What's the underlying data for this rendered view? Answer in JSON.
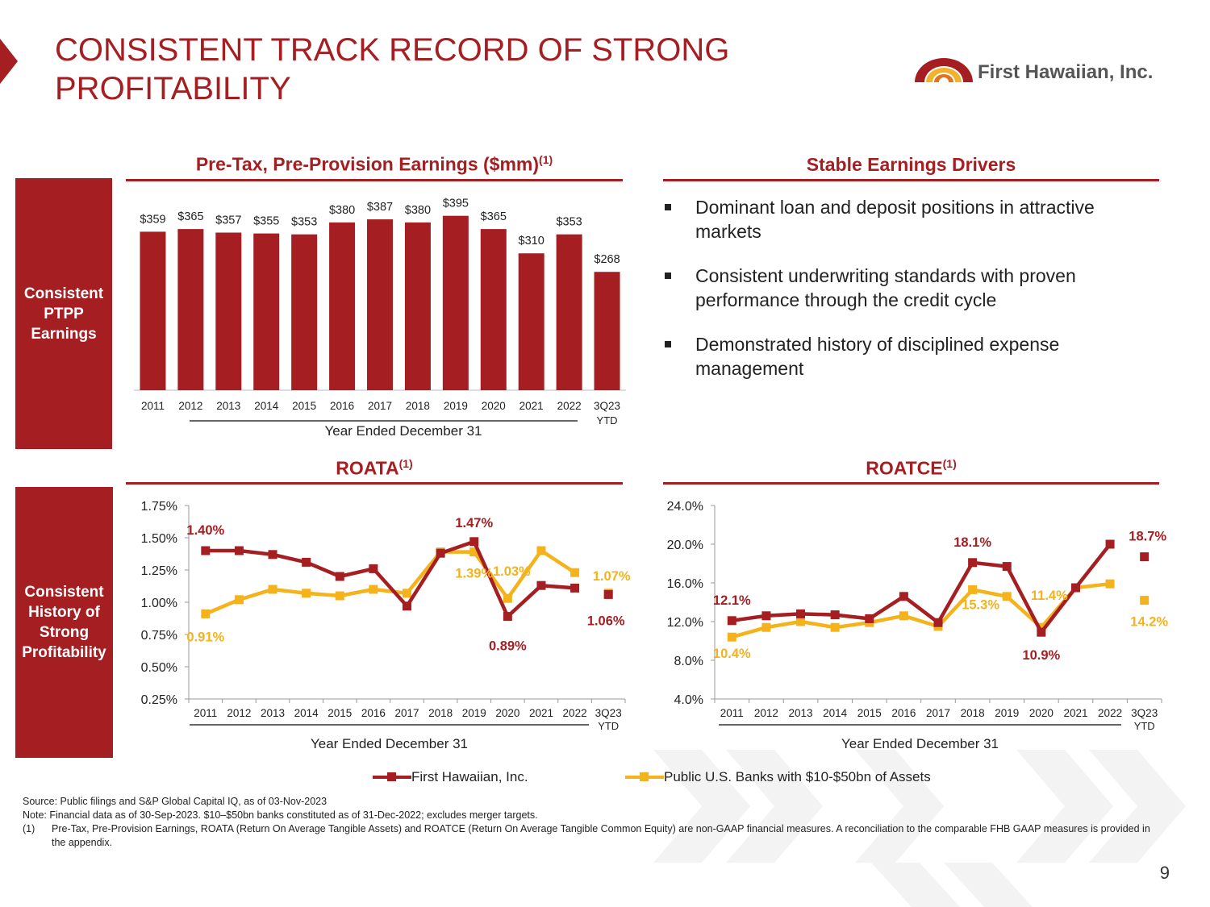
{
  "slide": {
    "title": "CONSISTENT TRACK RECORD OF STRONG PROFITABILITY",
    "logo_text": "First Hawaiian, Inc.",
    "page_number": "9"
  },
  "colors": {
    "brand_red": "#a51e22",
    "peer_gold": "#f4b21b",
    "logo_gold": "#f2b22b",
    "logo_orange": "#e2731f"
  },
  "side_labels": {
    "ptpp": "Consistent PTPP Earnings",
    "history": "Consistent History of Strong Profitability"
  },
  "sections": {
    "ptpp_title": "Pre-Tax, Pre-Provision Earnings ($mm)",
    "ptpp_note": "(1)",
    "drivers_title": "Stable Earnings Drivers",
    "roata_title": "ROATA",
    "roata_note": "(1)",
    "roatce_title": "ROATCE",
    "roatce_note": "(1)"
  },
  "drivers": [
    "Dominant loan and deposit positions in attractive markets",
    "Consistent underwriting standards with proven performance through the credit cycle",
    "Demonstrated history of disciplined expense management"
  ],
  "chart_data": [
    {
      "id": "ptpp",
      "type": "bar",
      "title": "Pre-Tax, Pre-Provision Earnings ($mm)",
      "categories": [
        "2011",
        "2012",
        "2013",
        "2014",
        "2015",
        "2016",
        "2017",
        "2018",
        "2019",
        "2020",
        "2021",
        "2022",
        "3Q23"
      ],
      "ytd_label": "YTD",
      "values": [
        359,
        365,
        357,
        355,
        353,
        380,
        387,
        380,
        395,
        365,
        310,
        353,
        268
      ],
      "value_labels": [
        "$359",
        "$365",
        "$357",
        "$355",
        "$353",
        "$380",
        "$387",
        "$380",
        "$395",
        "$365",
        "$310",
        "$353",
        "$268"
      ],
      "xlabel": "Year Ended December 31",
      "ylim": [
        0,
        420
      ]
    },
    {
      "id": "roata",
      "type": "line",
      "title": "ROATA",
      "categories": [
        "2011",
        "2012",
        "2013",
        "2014",
        "2015",
        "2016",
        "2017",
        "2018",
        "2019",
        "2020",
        "2021",
        "2022",
        "3Q23"
      ],
      "ytd_label": "YTD",
      "y_ticks": [
        "1.75%",
        "1.50%",
        "1.25%",
        "1.00%",
        "0.75%",
        "0.50%",
        "0.25%"
      ],
      "ylim": [
        0.25,
        1.75
      ],
      "xlabel": "Year Ended December 31",
      "series": [
        {
          "name": "First Hawaiian, Inc.",
          "color": "#a51e22",
          "values": [
            1.4,
            1.4,
            1.37,
            1.31,
            1.2,
            1.26,
            0.97,
            1.38,
            1.47,
            0.89,
            1.13,
            1.11,
            1.06
          ]
        },
        {
          "name": "Public U.S. Banks with $10-$50bn of Assets",
          "color": "#f4b21b",
          "values": [
            0.91,
            1.02,
            1.1,
            1.07,
            1.05,
            1.1,
            1.07,
            1.39,
            1.39,
            1.03,
            1.4,
            1.23,
            1.07
          ]
        }
      ],
      "annotations": [
        {
          "text": "1.40%",
          "series": 0,
          "point": 0,
          "dx": 0,
          "dy": -20,
          "color": "#a51e22"
        },
        {
          "text": "1.47%",
          "series": 0,
          "point": 8,
          "dx": 0,
          "dy": -18,
          "color": "#a51e22"
        },
        {
          "text": "0.89%",
          "series": 0,
          "point": 9,
          "dx": 0,
          "dy": 42,
          "color": "#a51e22"
        },
        {
          "text": "1.06%",
          "series": 0,
          "point": 12,
          "dx": -3,
          "dy": 38,
          "color": "#a51e22"
        },
        {
          "text": "0.91%",
          "series": 1,
          "point": 0,
          "dx": 0,
          "dy": 34,
          "color": "#f4b21b"
        },
        {
          "text": "1.39%",
          "series": 1,
          "point": 8,
          "dx": 0,
          "dy": 32,
          "color": "#f4b21b"
        },
        {
          "text": "1.03%",
          "series": 1,
          "point": 9,
          "dx": 5,
          "dy": -28,
          "color": "#f4b21b"
        },
        {
          "text": "1.07%",
          "series": 1,
          "point": 12,
          "dx": 4,
          "dy": -16,
          "color": "#f4b21b"
        }
      ]
    },
    {
      "id": "roatce",
      "type": "line",
      "title": "ROATCE",
      "categories": [
        "2011",
        "2012",
        "2013",
        "2014",
        "2015",
        "2016",
        "2017",
        "2018",
        "2019",
        "2020",
        "2021",
        "2022",
        "3Q23"
      ],
      "ytd_label": "YTD",
      "y_ticks": [
        "24.0%",
        "20.0%",
        "16.0%",
        "12.0%",
        "8.0%",
        "4.0%"
      ],
      "ylim": [
        4.0,
        24.0
      ],
      "xlabel": "Year Ended December 31",
      "series": [
        {
          "name": "First Hawaiian, Inc.",
          "color": "#a51e22",
          "values": [
            12.1,
            12.6,
            12.8,
            12.7,
            12.3,
            14.6,
            11.9,
            18.1,
            17.7,
            10.9,
            15.5,
            20.0,
            18.7
          ]
        },
        {
          "name": "Public U.S. Banks with $10-$50bn of Assets",
          "color": "#f4b21b",
          "values": [
            10.4,
            11.4,
            12.0,
            11.4,
            11.9,
            12.6,
            11.5,
            15.3,
            14.6,
            11.4,
            15.5,
            15.9,
            14.2
          ]
        }
      ],
      "annotations": [
        {
          "text": "12.1%",
          "series": 0,
          "point": 0,
          "dx": 0,
          "dy": -20,
          "color": "#a51e22"
        },
        {
          "text": "18.1%",
          "series": 0,
          "point": 7,
          "dx": 0,
          "dy": -20,
          "color": "#a51e22"
        },
        {
          "text": "10.9%",
          "series": 0,
          "point": 9,
          "dx": 0,
          "dy": 34,
          "color": "#a51e22"
        },
        {
          "text": "18.7%",
          "series": 0,
          "point": 12,
          "dx": 4,
          "dy": -20,
          "color": "#a51e22"
        },
        {
          "text": "10.4%",
          "series": 1,
          "point": 0,
          "dx": 0,
          "dy": 26,
          "color": "#f4b21b"
        },
        {
          "text": "15.3%",
          "series": 1,
          "point": 7,
          "dx": 10,
          "dy": 24,
          "color": "#f4b21b"
        },
        {
          "text": "11.4%",
          "series": 1,
          "point": 9,
          "dx": 10,
          "dy": -34,
          "color": "#f4b21b"
        },
        {
          "text": "14.2%",
          "series": 1,
          "point": 12,
          "dx": 6,
          "dy": 32,
          "color": "#f4b21b"
        }
      ]
    }
  ],
  "legend": [
    {
      "label": "First Hawaiian, Inc.",
      "color": "#a51e22"
    },
    {
      "label": "Public U.S. Banks with $10-$50bn of Assets",
      "color": "#f4b21b"
    }
  ],
  "footnotes": {
    "source": "Source: Public filings and S&P Global Capital IQ, as of 03-Nov-2023",
    "note": "Note: Financial data as of 30-Sep-2023. $10–$50bn banks constituted as of 31-Dec-2022; excludes merger targets.",
    "fn1_num": "(1)",
    "fn1_text": "Pre-Tax, Pre-Provision Earnings, ROATA (Return On Average Tangible Assets) and ROATCE (Return On Average Tangible Common Equity) are non-GAAP financial measures.  A reconciliation to the comparable FHB GAAP measures is provided in the appendix."
  }
}
